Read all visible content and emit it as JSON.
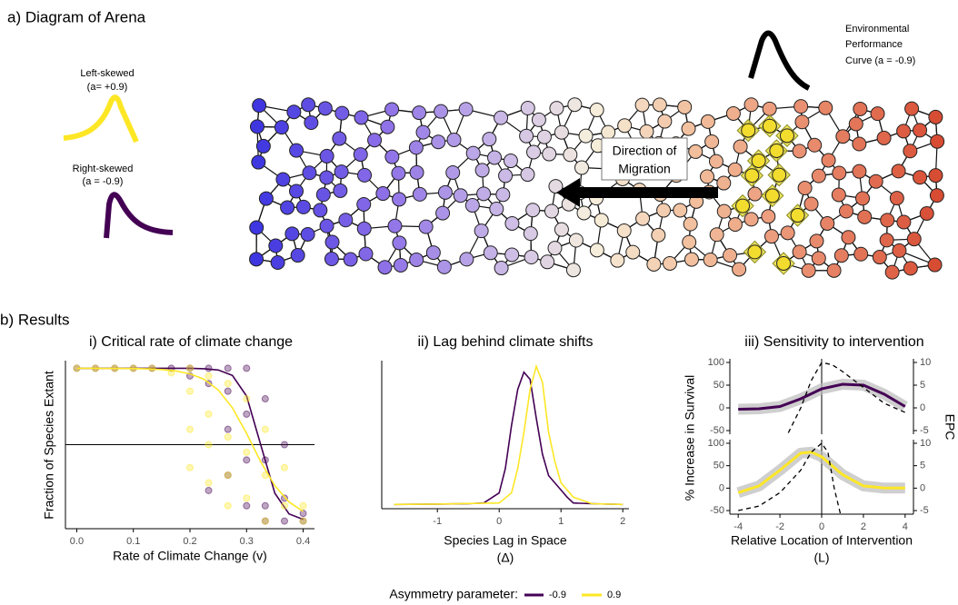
{
  "diagram": {
    "title": "a) Diagram of Arena",
    "left_skew": [
      "Left-skewed",
      "(a= +0.9)"
    ],
    "right_skew": [
      "Right-skewed",
      "(a = -0.9)"
    ],
    "epc": [
      "Environmental",
      "Performance",
      "Curve (a = -0.9)"
    ],
    "direction": [
      "Direction of",
      "Migration"
    ]
  },
  "results_title": "b) Results",
  "legend": {
    "title": "Asymmetry parameter:"
  },
  "chart_data": [
    {
      "type": "scatter",
      "title": "i) Critical rate of climate change",
      "x_label": "Rate of Climate Change (v)",
      "y_label": "Fraction of Species Extant",
      "xlim": [
        -0.02,
        0.42
      ],
      "ylim": [
        -0.05,
        1.05
      ],
      "xticks": [
        {
          "value": 0,
          "label": "0.0"
        },
        0.1,
        0.2,
        0.3,
        0.4
      ],
      "hline": 0.5,
      "series": [
        {
          "name": "-0.9",
          "color": "#440154",
          "points": {
            "x": [
              0,
              0.033,
              0.067,
              0.1,
              0.133,
              0.167,
              0.2,
              0.2,
              0.233,
              0.233,
              0.233,
              0.267,
              0.267,
              0.267,
              0.267,
              0.3,
              0.3,
              0.3,
              0.3,
              0.333,
              0.333,
              0.333,
              0.333,
              0.367,
              0.367,
              0.367,
              0.4,
              0.4
            ],
            "y": [
              1,
              1,
              1,
              1,
              1,
              1,
              1,
              0.95,
              1,
              0.9,
              0.2,
              1,
              0.85,
              0.6,
              0.3,
              1,
              0.7,
              0.4,
              0.1,
              0.8,
              0.4,
              0.1,
              0,
              0.5,
              0.15,
              0,
              0.05,
              0
            ]
          },
          "x": [
            0,
            0.025,
            0.05,
            0.075,
            0.1,
            0.125,
            0.15,
            0.175,
            0.2,
            0.225,
            0.25,
            0.275,
            0.3,
            0.325,
            0.35,
            0.375,
            0.4
          ],
          "values": [
            1,
            1,
            1,
            1,
            1,
            1,
            1,
            1,
            1,
            0.997,
            0.989,
            0.953,
            0.818,
            0.5,
            0.182,
            0.047,
            0.011
          ]
        },
        {
          "name": "0.9",
          "color": "#fde725",
          "points": {
            "x": [
              0,
              0.033,
              0.067,
              0.1,
              0.133,
              0.167,
              0.2,
              0.2,
              0.2,
              0.2,
              0.233,
              0.233,
              0.233,
              0.233,
              0.267,
              0.267,
              0.267,
              0.267,
              0.3,
              0.3,
              0.3,
              0.333,
              0.333,
              0.333,
              0.367,
              0.367,
              0.4,
              0.4
            ],
            "y": [
              1,
              1,
              1,
              1,
              1,
              0.97,
              1,
              0.85,
              0.6,
              0.35,
              0.95,
              0.7,
              0.5,
              0.25,
              0.9,
              0.55,
              0.3,
              0.1,
              0.8,
              0.45,
              0.15,
              0.6,
              0.3,
              0,
              0.35,
              0.1,
              0.1,
              0
            ]
          },
          "x": [
            0,
            0.025,
            0.05,
            0.075,
            0.1,
            0.125,
            0.15,
            0.175,
            0.2,
            0.225,
            0.25,
            0.275,
            0.3,
            0.325,
            0.35,
            0.375,
            0.4
          ],
          "values": [
            1,
            1,
            0.999,
            0.999,
            0.998,
            0.996,
            0.992,
            0.983,
            0.964,
            0.928,
            0.858,
            0.741,
            0.574,
            0.389,
            0.231,
            0.125,
            0.063
          ]
        }
      ]
    },
    {
      "type": "line",
      "title": "ii) Lag behind climate shifts",
      "x_label": [
        "Species Lag in Space",
        "(Δ)"
      ],
      "xlim": [
        -1.9,
        2.1
      ],
      "ylim": [
        -0.03,
        1
      ],
      "xticks": [
        -1,
        0,
        1,
        2
      ],
      "series": [
        {
          "name": "-0.9",
          "color": "#440154",
          "x": [
            -1.7,
            -1,
            -0.5,
            -0.25,
            0,
            0.1,
            0.2,
            0.3,
            0.4,
            0.5,
            0.6,
            0.7,
            0.8,
            0.9,
            1.0,
            1.1,
            1.2,
            1.5,
            2.0
          ],
          "values": [
            0,
            0.002,
            0.005,
            0.01,
            0.08,
            0.25,
            0.55,
            0.8,
            0.92,
            0.87,
            0.6,
            0.35,
            0.2,
            0.15,
            0.1,
            0.05,
            0.01,
            0.005,
            0
          ]
        },
        {
          "name": "0.9",
          "color": "#fde725",
          "x": [
            -1.7,
            -1,
            0,
            0.2,
            0.3,
            0.4,
            0.5,
            0.6,
            0.7,
            0.8,
            0.9,
            1.0,
            1.1,
            1.2,
            1.5,
            2.0
          ],
          "values": [
            0,
            0.002,
            0.01,
            0.08,
            0.25,
            0.5,
            0.8,
            0.96,
            0.85,
            0.5,
            0.3,
            0.15,
            0.1,
            0.05,
            0.005,
            0
          ]
        }
      ]
    },
    {
      "type": "line",
      "title": "iii) Sensitivity to intervention",
      "x_label": [
        "Relative Location of Intervention",
        "(L)"
      ],
      "y_label": "% Increase in Survival",
      "y2_label": "EPC",
      "xlim": [
        -4.4,
        4.4
      ],
      "xticks": [
        -4,
        -2,
        0,
        2,
        4
      ],
      "panels": [
        {
          "ylim": [
            -58,
            108
          ],
          "yticks": [
            -50,
            0,
            50,
            100
          ],
          "y2lim": [
            -5.8,
            10.8
          ],
          "y2ticks": [
            -5,
            0,
            5,
            10
          ],
          "vline": 0,
          "series": [
            {
              "color": "#440154",
              "band": true,
              "x": [
                -4,
                -3,
                -2,
                -1,
                0,
                1,
                2,
                3,
                4
              ],
              "values": [
                -3,
                -2,
                3,
                20,
                42,
                52,
                50,
                30,
                3
              ]
            },
            {
              "color": "#000000",
              "axis": "y2",
              "dash": true,
              "x": [
                -1.6,
                -1,
                -0.5,
                0,
                0.5,
                1,
                2,
                3,
                4
              ],
              "values": [
                -5.5,
                0,
                6,
                10,
                9.5,
                8,
                4.5,
                1,
                -1
              ]
            }
          ]
        },
        {
          "ylim": [
            -58,
            108
          ],
          "yticks": [
            -50,
            0,
            50,
            100
          ],
          "y2lim": [
            -5.8,
            10.8
          ],
          "y2ticks": [
            -5,
            0,
            5,
            10
          ],
          "vline": 0,
          "series": [
            {
              "color": "#fde725",
              "band": true,
              "x": [
                -4,
                -3,
                -2,
                -1,
                -0.5,
                0,
                1,
                2,
                3,
                4
              ],
              "values": [
                -10,
                5,
                40,
                78,
                80,
                70,
                30,
                5,
                0,
                0
              ]
            },
            {
              "color": "#000000",
              "axis": "y2",
              "dash": true,
              "x": [
                -4,
                -3,
                -2,
                -1,
                -0.5,
                0,
                0.3,
                0.6,
                0.9
              ],
              "values": [
                -5,
                -4,
                -1,
                4,
                8,
                10,
                8,
                0,
                -5.8
              ]
            }
          ]
        }
      ]
    }
  ]
}
